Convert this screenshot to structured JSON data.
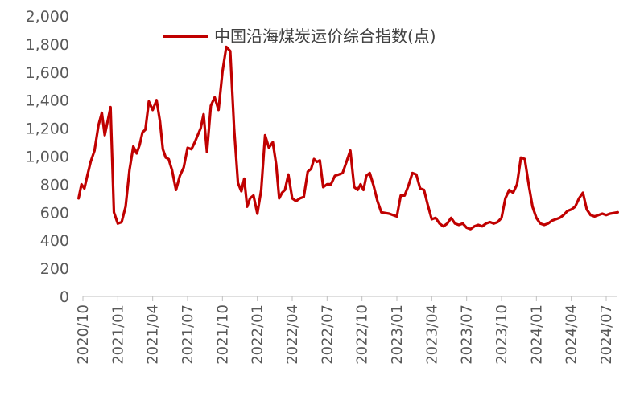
{
  "chart_data": {
    "type": "line",
    "title": "",
    "xlabel": "",
    "ylabel": "",
    "ylim": [
      0,
      2000
    ],
    "yticks": [
      "0",
      "200",
      "400",
      "600",
      "800",
      "1,000",
      "1,200",
      "1,400",
      "1,600",
      "1,800",
      "2,000"
    ],
    "xticks": [
      "2020/10",
      "2021/01",
      "2021/04",
      "2021/07",
      "2021/10",
      "2022/01",
      "2022/04",
      "2022/07",
      "2022/10",
      "2023/01",
      "2023/04",
      "2023/07",
      "2023/10",
      "2024/01",
      "2024/04",
      "2024/07"
    ],
    "legend_position": "top",
    "grid": false,
    "series": [
      {
        "name": "中国沿海煤炭运价综合指数(点)",
        "color": "#c00000",
        "x": [
          "2020/10",
          "2020/10",
          "2020/10",
          "2020/10",
          "2020/11",
          "2020/11",
          "2020/11",
          "2020/12",
          "2020/12",
          "2020/12",
          "2020/12",
          "2021/01",
          "2021/01",
          "2021/01",
          "2021/02",
          "2021/02",
          "2021/02",
          "2021/03",
          "2021/03",
          "2021/03",
          "2021/03",
          "2021/04",
          "2021/04",
          "2021/04",
          "2021/05",
          "2021/05",
          "2021/05",
          "2021/05",
          "2021/06",
          "2021/06",
          "2021/06",
          "2021/07",
          "2021/07",
          "2021/07",
          "2021/08",
          "2021/08",
          "2021/08",
          "2021/08",
          "2021/09",
          "2021/09",
          "2021/09",
          "2021/10",
          "2021/10",
          "2021/10",
          "2021/11",
          "2021/11",
          "2021/11",
          "2021/12",
          "2021/12",
          "2021/12",
          "2021/12",
          "2022/01",
          "2022/01",
          "2022/01",
          "2022/02",
          "2022/02",
          "2022/02",
          "2022/03",
          "2022/03",
          "2022/03",
          "2022/03",
          "2022/04",
          "2022/04",
          "2022/04",
          "2022/05",
          "2022/05",
          "2022/05",
          "2022/06",
          "2022/06",
          "2022/06",
          "2022/06",
          "2022/07",
          "2022/07",
          "2022/07",
          "2022/08",
          "2022/08",
          "2022/08",
          "2022/09",
          "2022/09",
          "2022/09",
          "2022/10",
          "2022/10",
          "2022/10",
          "2022/10",
          "2022/11",
          "2022/11",
          "2022/11",
          "2022/12",
          "2022/12",
          "2022/12",
          "2023/01",
          "2023/01",
          "2023/01",
          "2023/02",
          "2023/02",
          "2023/02",
          "2023/03",
          "2023/03",
          "2023/03",
          "2023/04",
          "2023/04",
          "2023/04",
          "2023/05",
          "2023/05",
          "2023/05",
          "2023/06",
          "2023/06",
          "2023/06",
          "2023/07",
          "2023/07",
          "2023/07",
          "2023/08",
          "2023/08",
          "2023/08",
          "2023/09",
          "2023/09",
          "2023/09",
          "2023/10",
          "2023/10",
          "2023/10",
          "2023/11",
          "2023/11",
          "2023/11",
          "2023/12",
          "2023/12",
          "2023/12",
          "2024/01",
          "2024/01",
          "2024/01",
          "2024/02",
          "2024/02",
          "2024/02",
          "2024/03",
          "2024/03",
          "2024/03",
          "2024/04",
          "2024/04",
          "2024/04",
          "2024/05",
          "2024/05",
          "2024/05",
          "2024/06",
          "2024/06",
          "2024/06",
          "2024/07",
          "2024/07",
          "2024/07",
          "2024/08"
        ],
        "values": [
          700,
          800,
          770,
          860,
          960,
          1040,
          1220,
          1310,
          1150,
          1250,
          1350,
          600,
          520,
          530,
          640,
          900,
          1070,
          1020,
          1080,
          1170,
          1190,
          1390,
          1330,
          1400,
          1250,
          1050,
          990,
          980,
          900,
          760,
          860,
          920,
          1060,
          1050,
          1100,
          1150,
          1200,
          1300,
          1030,
          1360,
          1420,
          1330,
          1600,
          1780,
          1750,
          1200,
          810,
          750,
          840,
          640,
          700,
          720,
          590,
          760,
          1150,
          1060,
          1100,
          940,
          700,
          740,
          760,
          870,
          700,
          680,
          700,
          710,
          890,
          910,
          980,
          960,
          970,
          780,
          800,
          800,
          860,
          870,
          880,
          960,
          1040,
          780,
          760,
          800,
          760,
          860,
          880,
          790,
          680,
          600,
          595,
          590,
          580,
          570,
          720,
          720,
          790,
          880,
          870,
          770,
          760,
          650,
          550,
          560,
          520,
          500,
          520,
          560,
          520,
          510,
          520,
          490,
          480,
          500,
          510,
          500,
          520,
          530,
          520,
          530,
          560,
          700,
          760,
          740,
          800,
          990,
          980,
          800,
          640,
          560,
          520,
          510,
          520,
          540,
          550,
          560,
          580,
          610,
          620,
          640,
          700,
          740,
          620,
          580,
          570,
          580,
          590,
          580,
          590,
          600
        ]
      }
    ]
  }
}
